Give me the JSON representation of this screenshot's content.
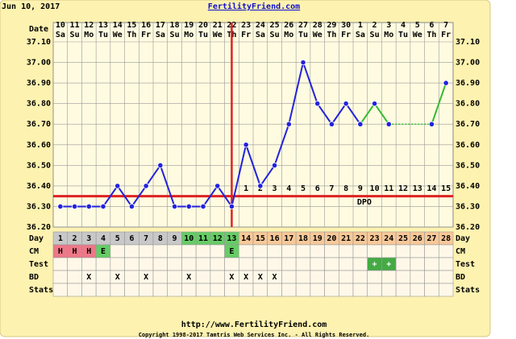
{
  "chart_data": {
    "type": "line",
    "date": "Jun 10, 2017",
    "title": "FertilityFriend.com",
    "date_label": "Date",
    "day_label": "Day",
    "cm_label": "CM",
    "test_label": "Test",
    "bd_label": "BD",
    "stats_label": "Stats",
    "dpo_label": "DPO",
    "categories": [
      10,
      11,
      12,
      13,
      14,
      15,
      16,
      17,
      18,
      19,
      20,
      21,
      22,
      23,
      24,
      25,
      26,
      27,
      28,
      29,
      30,
      1,
      2,
      3,
      4,
      5,
      6,
      7
    ],
    "weekdays": [
      "Sa",
      "Su",
      "Mo",
      "Tu",
      "We",
      "Th",
      "Fr",
      "Sa",
      "Su",
      "Mo",
      "Tu",
      "We",
      "Th",
      "Fr",
      "Sa",
      "Su",
      "Mo",
      "Tu",
      "We",
      "Th",
      "Fr",
      "Sa",
      "Su",
      "Mo",
      "Tu",
      "We",
      "Th",
      "Fr"
    ],
    "days": [
      1,
      2,
      3,
      4,
      5,
      6,
      7,
      8,
      9,
      10,
      11,
      12,
      13,
      14,
      15,
      16,
      17,
      18,
      19,
      20,
      21,
      22,
      23,
      24,
      25,
      26,
      27,
      28
    ],
    "dpo": [
      null,
      null,
      null,
      null,
      null,
      null,
      null,
      null,
      null,
      null,
      null,
      null,
      null,
      1,
      2,
      3,
      4,
      5,
      6,
      7,
      8,
      9,
      10,
      11,
      12,
      13,
      14,
      15
    ],
    "cm": [
      "H",
      "H",
      "H",
      "E",
      null,
      null,
      null,
      null,
      null,
      null,
      null,
      null,
      "E",
      null,
      null,
      null,
      null,
      null,
      null,
      null,
      null,
      null,
      null,
      null,
      null,
      null,
      null,
      null
    ],
    "test": [
      null,
      null,
      null,
      null,
      null,
      null,
      null,
      null,
      null,
      null,
      null,
      null,
      null,
      null,
      null,
      null,
      null,
      null,
      null,
      null,
      null,
      null,
      "+",
      "+",
      null,
      null,
      null,
      null
    ],
    "bd": [
      null,
      null,
      "X",
      null,
      "X",
      null,
      "X",
      null,
      null,
      "X",
      null,
      null,
      "X",
      "X",
      "X",
      "X",
      null,
      null,
      null,
      null,
      null,
      null,
      null,
      null,
      null,
      null,
      null,
      null
    ],
    "series": [
      {
        "color": "#2222dd",
        "values": [
          36.3,
          36.3,
          36.3,
          36.3,
          36.4,
          36.3,
          36.4,
          36.5,
          36.3,
          36.3,
          36.3,
          36.4,
          36.3,
          36.6,
          36.4,
          36.5,
          36.7,
          37.0,
          36.8,
          36.7,
          36.8,
          36.7,
          null,
          null,
          null,
          null,
          null,
          null
        ]
      },
      {
        "color": "#33bb33",
        "values": [
          null,
          null,
          null,
          null,
          null,
          null,
          null,
          null,
          null,
          null,
          null,
          null,
          null,
          null,
          null,
          null,
          null,
          null,
          null,
          null,
          null,
          36.7,
          36.8,
          36.7,
          null,
          null,
          36.7,
          36.9
        ]
      }
    ],
    "coverline": 36.35,
    "ovulation_day": 13,
    "ylim": [
      36.2,
      37.1
    ],
    "yticks": [
      {
        "value": 36.2,
        "label": "36.20"
      },
      {
        "value": 36.3,
        "label": "36.30"
      },
      {
        "value": 36.4,
        "label": "36.40"
      },
      {
        "value": 36.5,
        "label": "36.50"
      },
      {
        "value": 36.6,
        "label": "36.60"
      },
      {
        "value": 36.7,
        "label": "36.70"
      },
      {
        "value": 36.8,
        "label": "36.80"
      },
      {
        "value": 36.9,
        "label": "36.90"
      },
      {
        "value": 37.0,
        "label": "37.00"
      },
      {
        "value": 37.1,
        "label": "37.10"
      }
    ],
    "grid": true,
    "url": "http://www.FertilityFriend.com",
    "copyright": "Copyright 1998-2017 Tamtris Web Services Inc. - All Rights Reserved."
  }
}
